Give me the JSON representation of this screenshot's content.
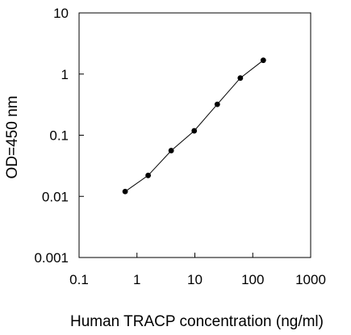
{
  "chart_data": {
    "type": "line",
    "title": "",
    "xlabel": "Human TRACP concentration (ng/ml)",
    "ylabel": "OD=450 nm",
    "xscale": "log",
    "yscale": "log",
    "xlim": [
      0.1,
      1000
    ],
    "ylim": [
      0.001,
      10
    ],
    "x_ticks": [
      0.1,
      1,
      10,
      100,
      1000
    ],
    "x_tick_labels": [
      "0.1",
      "1",
      "10",
      "100",
      "1000"
    ],
    "y_ticks": [
      0.001,
      0.01,
      0.1,
      1,
      10
    ],
    "y_tick_labels": [
      "0.001",
      "0.01",
      "0.1",
      "1",
      "10"
    ],
    "grid": false,
    "legend": "none",
    "series": [
      {
        "x": [
          0.625,
          1.56,
          3.9,
          9.75,
          24.4,
          61,
          152
        ],
        "y": [
          0.012,
          0.022,
          0.056,
          0.118,
          0.32,
          0.86,
          1.68
        ],
        "color": "#000000",
        "marker": "circle"
      }
    ]
  }
}
